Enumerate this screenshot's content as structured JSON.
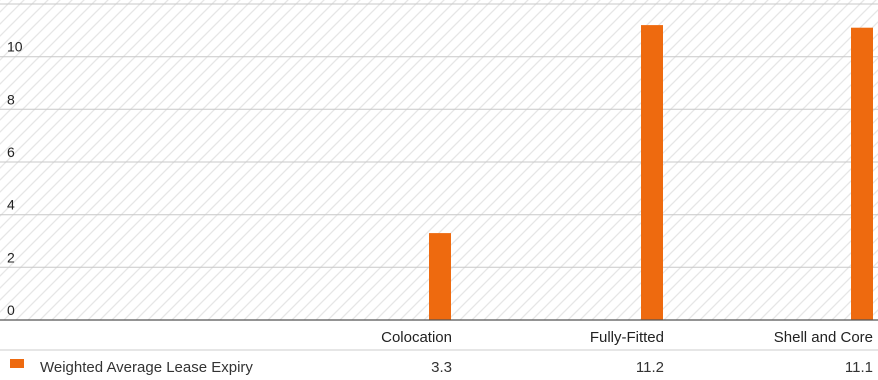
{
  "chart_data": {
    "type": "bar",
    "categories": [
      "Colocation",
      "Fully-Fitted",
      "Shell and Core"
    ],
    "series": [
      {
        "name": "Weighted Average Lease Expiry",
        "values": [
          3.3,
          11.2,
          11.1
        ],
        "color": "#ee6a0f"
      }
    ],
    "y_ticks": [
      0,
      2,
      4,
      6,
      8,
      10,
      12
    ],
    "ylim": [
      0,
      12
    ],
    "grid": true,
    "legend": "bottom-left, as table row",
    "background": "diagonal-hatch"
  }
}
